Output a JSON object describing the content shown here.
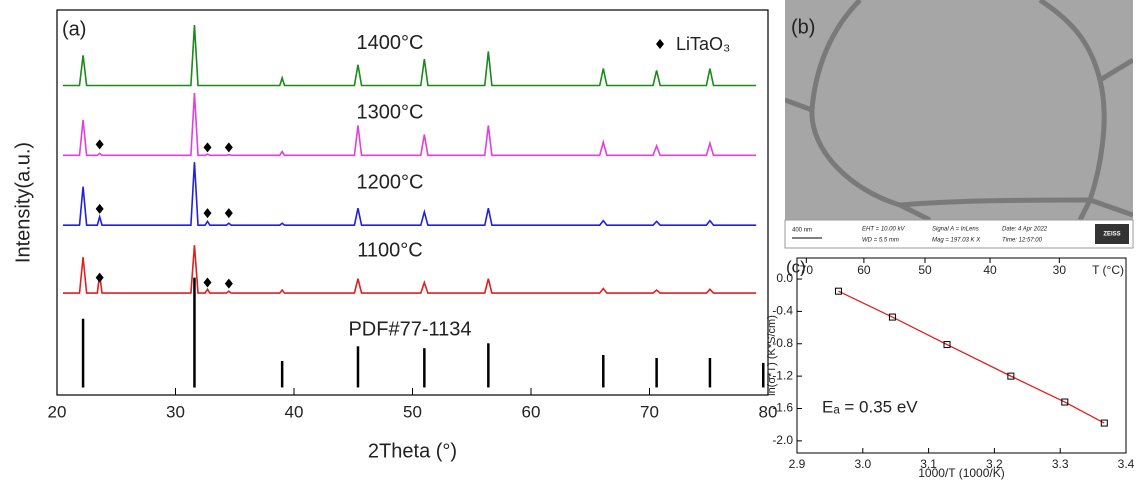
{
  "chart_data": [
    {
      "type": "line",
      "panel_label": "(a)",
      "xlabel": "2Theta (°)",
      "ylabel": "Intensity(a.u.)",
      "xlim": [
        20,
        80
      ],
      "xticks": [
        20,
        30,
        40,
        50,
        60,
        70,
        80
      ],
      "ylim": [
        -2,
        100
      ],
      "x": [
        20.5,
        21.9,
        22.2,
        22.5,
        23.4,
        23.6,
        23.8,
        31.3,
        31.6,
        31.9,
        32.5,
        32.7,
        32.9,
        34.3,
        34.5,
        34.7,
        38.8,
        39.0,
        39.2,
        45.1,
        45.4,
        45.7,
        50.7,
        51.0,
        51.3,
        56.1,
        56.4,
        56.7,
        65.8,
        66.1,
        66.4,
        70.3,
        70.6,
        70.9,
        74.8,
        75.1,
        75.4,
        79
      ],
      "series": [
        {
          "name": "1400°C",
          "color": "#1a8a1a",
          "values": [
            80,
            80,
            88,
            80,
            80,
            80,
            80,
            80,
            96,
            80,
            80,
            80,
            80,
            80,
            80,
            80,
            80,
            82,
            80,
            80,
            85.5,
            80,
            80,
            87,
            80,
            80,
            89,
            80,
            80,
            84.5,
            80,
            80,
            84,
            80,
            80,
            84.5,
            80,
            80
          ]
        },
        {
          "name": "1300°C",
          "color": "#e040e0",
          "values": [
            61.5,
            61.5,
            70.9,
            61.5,
            61.5,
            62,
            61.5,
            61.5,
            78,
            61.5,
            61.5,
            61.8,
            61.5,
            61.5,
            61.7,
            61.5,
            61.5,
            62.5,
            61.5,
            61.5,
            69.4,
            61.5,
            61.5,
            67,
            61.5,
            61.5,
            69.4,
            61.5,
            61.5,
            65,
            61.5,
            61.5,
            64,
            61.5,
            61.5,
            64.7,
            61.5,
            61.5
          ]
        },
        {
          "name": "1200°C",
          "color": "#2020e0",
          "values": [
            43,
            43,
            53.2,
            43,
            43,
            45.2,
            43,
            43,
            59.7,
            43,
            43,
            44,
            43,
            43,
            43.5,
            43,
            43,
            43.5,
            43,
            43,
            47.5,
            43,
            43,
            46.5,
            43,
            43,
            47.5,
            43,
            43,
            44.2,
            43,
            43,
            44,
            43,
            43,
            44.2,
            43,
            43
          ]
        },
        {
          "name": "1100°C",
          "color": "#e02020",
          "values": [
            25,
            25,
            34.5,
            25,
            25,
            29.9,
            25,
            25,
            37.7,
            25,
            25,
            26,
            25,
            25,
            25.5,
            25,
            25,
            25.8,
            25,
            25,
            28.8,
            25,
            25,
            27.8,
            25,
            25,
            28.8,
            25,
            25,
            26.2,
            25,
            25,
            25.8,
            25,
            25,
            26,
            25,
            25
          ]
        }
      ],
      "markers": {
        "name": "LiTaO₃",
        "color": "#000000",
        "x": [
          23.6,
          32.7,
          34.5,
          23.6,
          32.7,
          34.5,
          23.6,
          32.7,
          34.5
        ],
        "values": [
          64.4,
          63.6,
          63.6,
          47.3,
          46.2,
          46.2,
          29.1,
          27.8,
          27.5
        ]
      },
      "reference": {
        "name": "PDF#77-1134",
        "color": "#000000",
        "x": [
          22.2,
          31.6,
          39.0,
          45.4,
          51.0,
          56.4,
          66.1,
          70.6,
          75.1,
          79.6
        ],
        "values": [
          18.2,
          29.1,
          7.0,
          10.9,
          10.4,
          11.7,
          8.6,
          7.8,
          7.8,
          6.5
        ]
      }
    },
    {
      "type": "image",
      "panel_label": "(b)",
      "scale": "400 nm",
      "info": [
        "EHT = 10.00 kV",
        "WD = 5.5 mm",
        "Signal A = InLens",
        "Mag = 197.03 K X",
        "Date: 4 Apr 2022",
        "Time: 12:57:00"
      ],
      "logo": "ZEISS"
    },
    {
      "type": "scatter",
      "panel_label": "(c)",
      "xlabel": "1000/T (1000/K)",
      "ylabel": "ln(σ*T) (K*S/cm)",
      "x2label": "T (°C)",
      "annotation": "Eₐ = 0.35 eV",
      "xlim": [
        2.9,
        3.4
      ],
      "xticks": [
        2.9,
        {
          "value": 3,
          "label": "3.0"
        },
        3.1,
        3.2,
        3.3,
        3.4
      ],
      "x2ticks": [
        70,
        60,
        50,
        40,
        30
      ],
      "ylim": [
        -2.15,
        0.26
      ],
      "yticks": [
        {
          "value": -2,
          "label": "-2.0"
        },
        -1.6,
        -1.2,
        -0.8,
        -0.4,
        {
          "value": 0,
          "label": "0.0"
        }
      ],
      "x": [
        2.963,
        3.045,
        3.128,
        3.225,
        3.307,
        3.367
      ],
      "values": [
        -0.15,
        -0.47,
        -0.81,
        -1.2,
        -1.52,
        -1.78
      ],
      "color": "#000000",
      "fit_color": "#e02020"
    }
  ]
}
